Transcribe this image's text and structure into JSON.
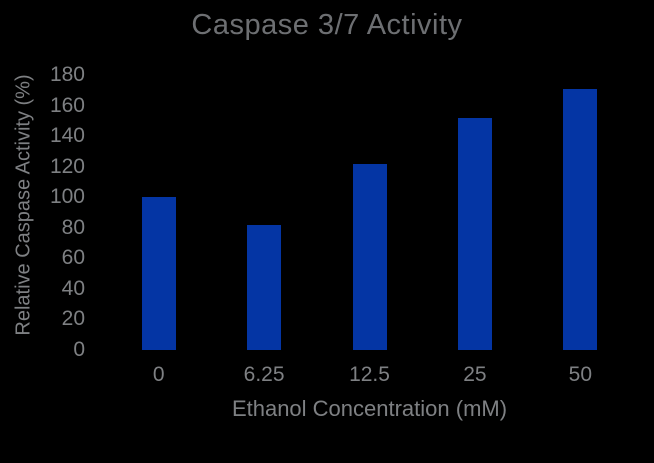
{
  "figure": {
    "background": "#000000"
  },
  "chart_data": {
    "type": "bar",
    "title": "Caspase 3/7 Activity",
    "xlabel": "Ethanol Concentration (mM)",
    "ylabel": "Relative Caspase Activity (%)",
    "categories": [
      "0",
      "6.25",
      "12.5",
      "25",
      "50"
    ],
    "values": [
      100,
      82,
      122,
      152,
      171
    ],
    "y_ticks": [
      180,
      160,
      140,
      120,
      100,
      80,
      60,
      40,
      20,
      0
    ],
    "ylim": [
      0,
      190
    ],
    "grid": false,
    "legend": "none",
    "colors": {
      "bar": "#0435a4",
      "title_text": "#6d6f72",
      "axis_text": "#7e8083"
    }
  }
}
